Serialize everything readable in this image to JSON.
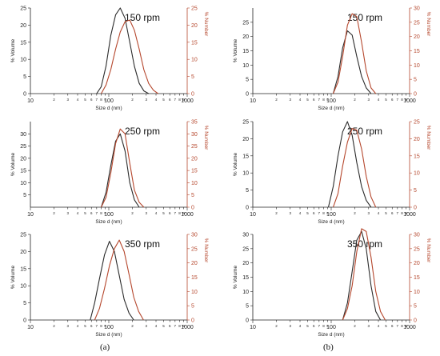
{
  "figure": {
    "captions": [
      "(a)",
      "(b)"
    ]
  },
  "colors": {
    "volume": "#2b2b2b",
    "number": "#b5472d",
    "axis_left": "#222222",
    "axis_right": "#b5472d"
  },
  "chart_data": [
    {
      "type": "line",
      "panel": "a",
      "label": "150 rpm",
      "xlabel": "Size d (nm)",
      "ylabel": "% Volume",
      "y2label": "% Number",
      "xscale": "log",
      "xlim": [
        10,
        1000
      ],
      "ylim": [
        0,
        25
      ],
      "y2lim": [
        0,
        25
      ],
      "yticks": [
        0,
        5,
        10,
        15,
        20,
        25
      ],
      "y2ticks": [
        0,
        5,
        10,
        15,
        20,
        25
      ],
      "series": [
        {
          "axis": "left",
          "x": [
            70,
            80,
            92,
            106,
            122,
            140,
            161,
            185,
            212,
            244,
            280,
            322
          ],
          "y": [
            0,
            2,
            8,
            17,
            23,
            25,
            22,
            15,
            8,
            3,
            0.8,
            0
          ]
        },
        {
          "axis": "right",
          "x": [
            80,
            92,
            106,
            122,
            140,
            161,
            185,
            212,
            244,
            280,
            322,
            370,
            425
          ],
          "y": [
            0,
            2.5,
            7,
            13,
            18,
            21,
            21.5,
            18.5,
            13,
            7,
            3,
            1,
            0
          ]
        }
      ]
    },
    {
      "type": "line",
      "panel": "b",
      "label": "150 rpm",
      "xlabel": "Size d (nm)",
      "ylabel": "% Volume",
      "y2label": "% Number",
      "xscale": "log",
      "xlim": [
        10,
        1000
      ],
      "ylim": [
        0,
        30
      ],
      "y2lim": [
        0,
        30
      ],
      "yticks": [
        0,
        5,
        10,
        15,
        20,
        25
      ],
      "y2ticks": [
        0,
        5,
        10,
        15,
        20,
        25,
        30
      ],
      "series": [
        {
          "axis": "left",
          "x": [
            106,
            122,
            140,
            161,
            185,
            212,
            244,
            280,
            322
          ],
          "y": [
            0,
            6,
            16,
            22,
            20.5,
            13,
            6,
            2,
            0
          ]
        },
        {
          "axis": "right",
          "x": [
            106,
            122,
            140,
            161,
            185,
            212,
            244,
            280,
            322,
            370
          ],
          "y": [
            0,
            4,
            13,
            24,
            28,
            27,
            18,
            8,
            2,
            0
          ]
        }
      ]
    },
    {
      "type": "line",
      "panel": "a",
      "label": "250 rpm",
      "xlabel": "Size d (nm)",
      "ylabel": "% Volume",
      "y2label": "% Number",
      "xscale": "log",
      "xlim": [
        10,
        1000
      ],
      "ylim": [
        0,
        35
      ],
      "y2lim": [
        0,
        35
      ],
      "yticks": [
        5,
        10,
        15,
        20,
        25,
        30
      ],
      "y2ticks": [
        0,
        5,
        10,
        15,
        20,
        25,
        30,
        35
      ],
      "series": [
        {
          "axis": "left",
          "x": [
            80,
            92,
            106,
            122,
            140,
            161,
            185,
            212,
            244
          ],
          "y": [
            0,
            6,
            17,
            27,
            30,
            23,
            10,
            3,
            0
          ]
        },
        {
          "axis": "right",
          "x": [
            80,
            92,
            106,
            122,
            140,
            161,
            185,
            212,
            244,
            280
          ],
          "y": [
            0,
            4,
            14,
            26,
            32,
            30,
            18,
            7,
            2,
            0
          ]
        }
      ]
    },
    {
      "type": "line",
      "panel": "b",
      "label": "250 rpm",
      "xlabel": "Size d (nm)",
      "ylabel": "% Volume",
      "y2label": "% Number",
      "xscale": "log",
      "xlim": [
        10,
        1000
      ],
      "ylim": [
        0,
        25
      ],
      "y2lim": [
        0,
        25
      ],
      "yticks": [
        0,
        5,
        10,
        15,
        20,
        25
      ],
      "y2ticks": [
        0,
        5,
        10,
        15,
        20,
        25
      ],
      "series": [
        {
          "axis": "left",
          "x": [
            92,
            106,
            122,
            140,
            161,
            185,
            212,
            244,
            280,
            322
          ],
          "y": [
            0,
            6,
            15,
            22,
            25,
            21,
            13,
            6,
            2,
            0
          ]
        },
        {
          "axis": "right",
          "x": [
            106,
            122,
            140,
            161,
            185,
            212,
            244,
            280,
            322,
            370
          ],
          "y": [
            0,
            4,
            12,
            19,
            23,
            22.5,
            17,
            9,
            3,
            0
          ]
        }
      ]
    },
    {
      "type": "line",
      "panel": "a",
      "label": "350 rpm",
      "xlabel": "Size d (nm)",
      "ylabel": "% Volume",
      "y2label": "% Number",
      "xscale": "log",
      "xlim": [
        10,
        1000
      ],
      "ylim": [
        0,
        25
      ],
      "y2lim": [
        0,
        30
      ],
      "yticks": [
        0,
        5,
        10,
        15,
        20,
        25
      ],
      "y2ticks": [
        0,
        5,
        10,
        15,
        20,
        25,
        30
      ],
      "series": [
        {
          "axis": "left",
          "x": [
            58,
            66,
            76,
            88,
            102,
            118,
            136,
            157,
            181,
            208
          ],
          "y": [
            0,
            5,
            12,
            19,
            23,
            20,
            13,
            6,
            2,
            0
          ]
        },
        {
          "axis": "right",
          "x": [
            66,
            76,
            88,
            102,
            118,
            136,
            157,
            181,
            208,
            240,
            277
          ],
          "y": [
            0,
            4,
            11,
            19,
            25,
            28,
            24,
            16,
            8,
            3,
            0
          ]
        }
      ]
    },
    {
      "type": "line",
      "panel": "b",
      "label": "350 rpm",
      "xlabel": "Size d (nm)",
      "ylabel": "% Volume",
      "y2label": "% Number",
      "xscale": "log",
      "xlim": [
        10,
        1000
      ],
      "ylim": [
        0,
        30
      ],
      "y2lim": [
        0,
        30
      ],
      "yticks": [
        0,
        5,
        10,
        15,
        20,
        25,
        30
      ],
      "y2ticks": [
        0,
        5,
        10,
        15,
        20,
        25,
        30
      ],
      "series": [
        {
          "axis": "left",
          "x": [
            140,
            161,
            185,
            212,
            244,
            280,
            322,
            370,
            425
          ],
          "y": [
            0,
            6,
            17,
            28,
            31,
            25,
            12,
            3,
            0
          ]
        },
        {
          "axis": "right",
          "x": [
            140,
            161,
            185,
            212,
            244,
            280,
            322,
            370,
            425,
            488
          ],
          "y": [
            0,
            4,
            12,
            24,
            32,
            31,
            22,
            10,
            3,
            0
          ]
        }
      ]
    }
  ]
}
